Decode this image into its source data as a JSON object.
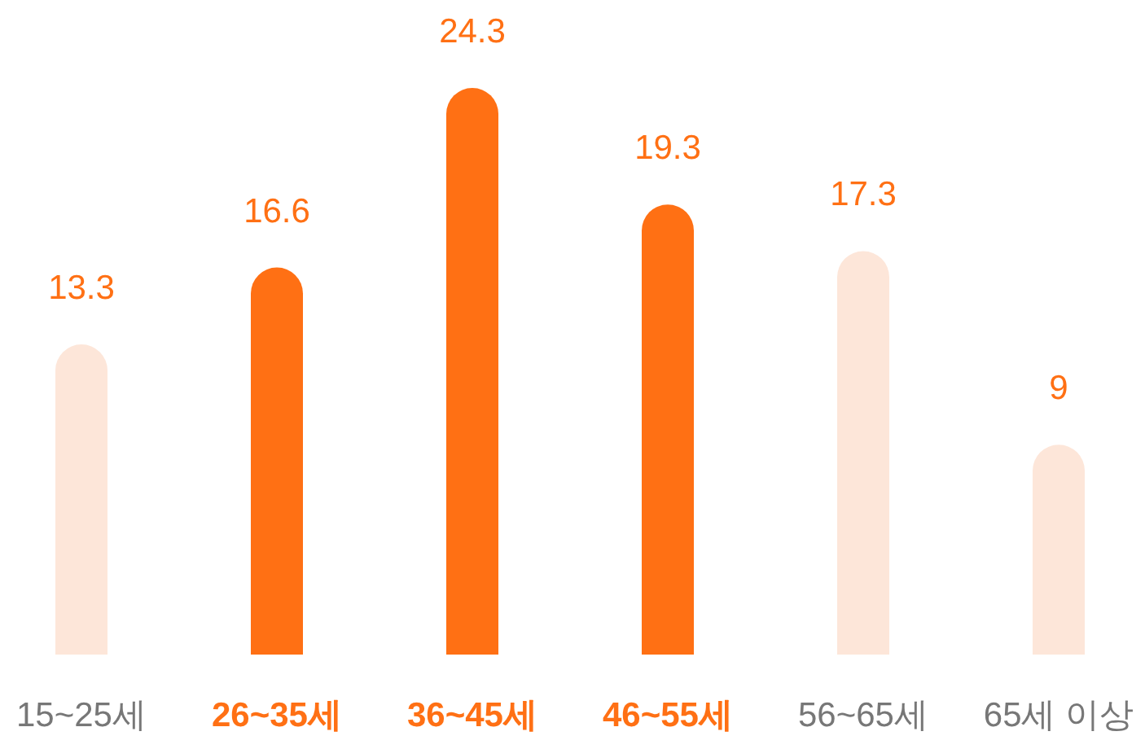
{
  "chart_data": {
    "type": "bar",
    "categories": [
      "15~25세",
      "26~35세",
      "36~45세",
      "46~55세",
      "56~65세",
      "65세 이상"
    ],
    "values": [
      13.3,
      16.6,
      24.3,
      19.3,
      17.3,
      9
    ],
    "colors": [
      "#fde6d9",
      "#ff7014",
      "#ff7014",
      "#ff7014",
      "#fde6d9",
      "#fde6d9"
    ],
    "data_labels": true
  }
}
